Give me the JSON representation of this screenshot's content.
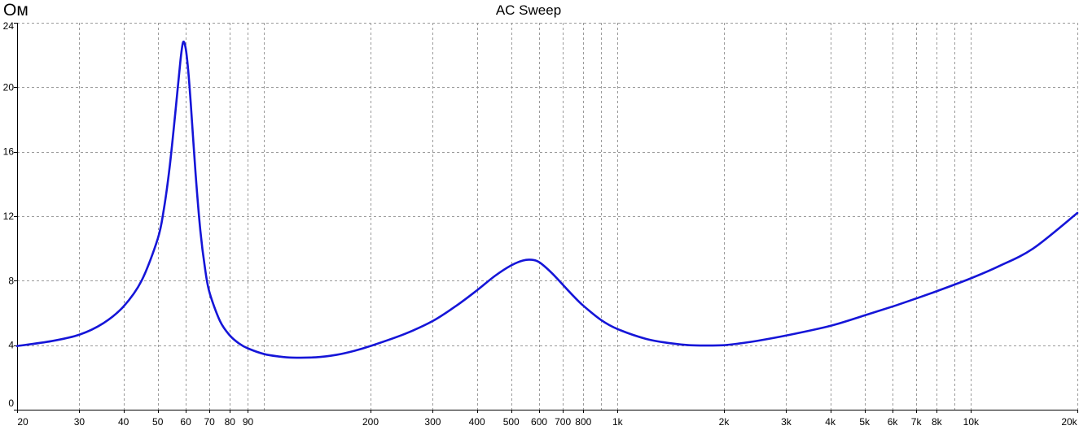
{
  "chart_data": {
    "type": "line",
    "title": "AC Sweep",
    "ylabel": "Ом",
    "xlabel": "",
    "x_scale": "log",
    "xlim": [
      20,
      20000
    ],
    "ylim": [
      0,
      24
    ],
    "grid": true,
    "colors": {
      "series": "#1515d8",
      "grid": "#9a9a9a",
      "axis": "#000000",
      "background": "#ffffff"
    },
    "y_ticks": [
      {
        "value": 0,
        "label": "0"
      },
      {
        "value": 4,
        "label": "4"
      },
      {
        "value": 8,
        "label": "8"
      },
      {
        "value": 12,
        "label": "12"
      },
      {
        "value": 16,
        "label": "16"
      },
      {
        "value": 20,
        "label": "20"
      },
      {
        "value": 24,
        "label": "24"
      }
    ],
    "x_ticks": [
      {
        "value": 20,
        "label": "20"
      },
      {
        "value": 30,
        "label": "30"
      },
      {
        "value": 40,
        "label": "40"
      },
      {
        "value": 50,
        "label": "50"
      },
      {
        "value": 60,
        "label": "60"
      },
      {
        "value": 70,
        "label": "70"
      },
      {
        "value": 80,
        "label": "80"
      },
      {
        "value": 90,
        "label": "90"
      },
      {
        "value": 200,
        "label": "200"
      },
      {
        "value": 300,
        "label": "300"
      },
      {
        "value": 400,
        "label": "400"
      },
      {
        "value": 500,
        "label": "500"
      },
      {
        "value": 600,
        "label": "600"
      },
      {
        "value": 700,
        "label": "700"
      },
      {
        "value": 800,
        "label": "800"
      },
      {
        "value": 1000,
        "label": "1k"
      },
      {
        "value": 2000,
        "label": "2k"
      },
      {
        "value": 3000,
        "label": "3k"
      },
      {
        "value": 4000,
        "label": "4k"
      },
      {
        "value": 5000,
        "label": "5k"
      },
      {
        "value": 6000,
        "label": "6k"
      },
      {
        "value": 7000,
        "label": "7k"
      },
      {
        "value": 8000,
        "label": "8k"
      },
      {
        "value": 10000,
        "label": "10k"
      },
      {
        "value": 20000,
        "label": "20k"
      }
    ],
    "x_gridlines": [
      20,
      30,
      40,
      50,
      60,
      70,
      80,
      90,
      100,
      200,
      300,
      400,
      500,
      600,
      700,
      800,
      900,
      1000,
      2000,
      3000,
      4000,
      5000,
      6000,
      7000,
      8000,
      9000,
      10000,
      20000
    ],
    "series": [
      {
        "x": [
          20,
          25,
          30,
          35,
          40,
          45,
          50,
          52,
          54,
          56,
          58,
          59,
          60,
          61,
          62,
          64,
          66,
          68,
          70,
          75,
          80,
          85,
          90,
          100,
          110,
          120,
          140,
          160,
          180,
          200,
          250,
          300,
          350,
          400,
          450,
          500,
          540,
          570,
          600,
          650,
          700,
          750,
          800,
          900,
          1000,
          1200,
          1400,
          1600,
          1800,
          2000,
          2200,
          2500,
          3000,
          4000,
          5000,
          6000,
          7000,
          8000,
          10000,
          12000,
          15000,
          20000
        ],
        "y": [
          3.95,
          4.25,
          4.65,
          5.35,
          6.4,
          8.0,
          10.6,
          12.4,
          15.0,
          18.3,
          21.7,
          22.8,
          22.4,
          21.0,
          19.0,
          14.6,
          11.1,
          8.8,
          7.3,
          5.5,
          4.6,
          4.1,
          3.8,
          3.45,
          3.3,
          3.23,
          3.25,
          3.4,
          3.65,
          3.95,
          4.7,
          5.5,
          6.45,
          7.4,
          8.3,
          8.95,
          9.25,
          9.3,
          9.15,
          8.5,
          7.75,
          7.05,
          6.45,
          5.55,
          5.0,
          4.4,
          4.13,
          4.0,
          3.98,
          4.0,
          4.1,
          4.28,
          4.6,
          5.2,
          5.85,
          6.4,
          6.9,
          7.35,
          8.15,
          8.9,
          10.0,
          12.2
        ]
      }
    ]
  }
}
